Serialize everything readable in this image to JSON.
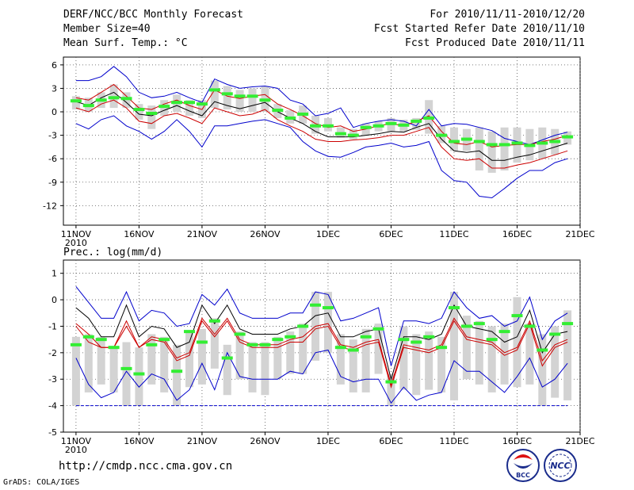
{
  "header": {
    "title": "DERF/NCC/BCC Monthly Forecast",
    "member_size": "Member Size=40",
    "variable": "Mean Surf. Temp.: °C",
    "period": "For 2010/11/11-2010/12/20",
    "started": "Fcst Started Refer Date 2010/11/10",
    "produced": "Fcst Produced Date 2010/11/11"
  },
  "footer": {
    "url": "http://cmdp.ncc.cma.gov.cn",
    "grads": "GrADS: COLA/IGES",
    "logo_bcc": "BCC",
    "logo_ncc": "NCC"
  },
  "colors": {
    "envelope": "#0000cc",
    "spread": "#cc0000",
    "mean": "#000000",
    "member_box": "#d3d3d3",
    "median_mark": "#33ee33"
  },
  "chart_data": [
    {
      "type": "line",
      "title": "Mean Surf. Temp.: °C",
      "x_tick_labels": [
        "11NOV",
        "16NOV",
        "21NOV",
        "26NOV",
        "1DEC",
        "6DEC",
        "11DEC",
        "16DEC",
        "21DEC"
      ],
      "x_year_label": "2010",
      "x_day_ticks": [
        0,
        5,
        10,
        15,
        20,
        25,
        30,
        35,
        40
      ],
      "ylim": [
        -14.5,
        7
      ],
      "yticks": [
        6,
        3,
        0,
        -3,
        -6,
        -9,
        -12
      ],
      "days": [
        0,
        1,
        2,
        3,
        4,
        5,
        6,
        7,
        8,
        9,
        10,
        11,
        12,
        13,
        14,
        15,
        16,
        17,
        18,
        19,
        20,
        21,
        22,
        23,
        24,
        25,
        26,
        27,
        28,
        29,
        30,
        31,
        32,
        33,
        34,
        35,
        36,
        37,
        38,
        39
      ],
      "series": [
        {
          "name": "max",
          "role": "envelope",
          "values": [
            4.0,
            4.0,
            4.5,
            5.8,
            4.5,
            2.5,
            1.8,
            2.0,
            2.5,
            1.8,
            1.2,
            4.2,
            3.5,
            3.0,
            3.2,
            3.3,
            3.0,
            1.5,
            1.0,
            -0.5,
            -0.2,
            0.5,
            -2.0,
            -1.5,
            -1.2,
            -1.0,
            -1.2,
            -1.8,
            0.3,
            -1.8,
            -1.5,
            -1.6,
            -2.0,
            -2.4,
            -3.4,
            -3.8,
            -4.2,
            -3.6,
            -3.0,
            -2.6
          ]
        },
        {
          "name": "upper",
          "role": "spread",
          "values": [
            1.8,
            1.5,
            2.5,
            3.5,
            2.0,
            0.5,
            0.3,
            1.0,
            1.5,
            0.8,
            0.3,
            2.8,
            2.0,
            1.7,
            2.0,
            2.2,
            1.0,
            0.3,
            -0.5,
            -1.5,
            -2.0,
            -1.8,
            -2.5,
            -2.2,
            -1.8,
            -1.5,
            -1.8,
            -1.2,
            -0.5,
            -2.5,
            -4.0,
            -4.2,
            -3.8,
            -4.5,
            -4.3,
            -4.2,
            -4.2,
            -3.8,
            -3.5,
            -3.0
          ]
        },
        {
          "name": "mean",
          "role": "mean",
          "values": [
            1.3,
            0.8,
            1.8,
            2.5,
            1.2,
            -0.3,
            -0.5,
            0.2,
            0.8,
            0.1,
            -0.5,
            1.3,
            0.8,
            0.4,
            0.8,
            1.2,
            0.0,
            -0.8,
            -1.5,
            -2.5,
            -3.2,
            -3.2,
            -3.2,
            -3.0,
            -2.8,
            -2.5,
            -2.6,
            -2.0,
            -1.5,
            -3.5,
            -5.0,
            -5.2,
            -5.0,
            -6.2,
            -6.2,
            -5.8,
            -5.5,
            -5.0,
            -4.5,
            -4.0
          ]
        },
        {
          "name": "lower",
          "role": "spread",
          "values": [
            0.5,
            0.0,
            1.0,
            1.5,
            0.5,
            -1.2,
            -1.5,
            -0.5,
            -0.2,
            -0.8,
            -1.5,
            0.5,
            0.0,
            -0.5,
            -0.3,
            0.3,
            -1.0,
            -1.8,
            -2.5,
            -3.5,
            -3.8,
            -3.8,
            -3.6,
            -3.5,
            -3.3,
            -3.0,
            -3.0,
            -2.5,
            -2.0,
            -4.5,
            -6.0,
            -6.2,
            -6.0,
            -7.2,
            -7.2,
            -6.8,
            -6.5,
            -6.0,
            -5.5,
            -5.0
          ]
        },
        {
          "name": "min",
          "role": "envelope",
          "values": [
            -1.5,
            -2.2,
            -1.0,
            -0.5,
            -1.8,
            -2.5,
            -3.5,
            -2.5,
            -1.0,
            -2.5,
            -4.5,
            -1.8,
            -1.8,
            -1.5,
            -1.2,
            -1.0,
            -1.5,
            -2.0,
            -3.8,
            -5.0,
            -5.7,
            -5.8,
            -5.2,
            -4.5,
            -4.3,
            -4.0,
            -4.5,
            -4.3,
            -3.8,
            -7.5,
            -8.8,
            -9.0,
            -10.8,
            -11.0,
            -9.8,
            -8.5,
            -7.5,
            -7.5,
            -6.5,
            -6.0
          ]
        },
        {
          "name": "median",
          "role": "median",
          "values": [
            1.4,
            0.8,
            1.5,
            1.8,
            1.7,
            0.3,
            -0.2,
            0.7,
            1.2,
            1.2,
            1.0,
            2.8,
            2.3,
            2.0,
            2.0,
            1.5,
            0.2,
            -0.8,
            -0.3,
            -1.8,
            -1.8,
            -2.8,
            -3.0,
            -2.0,
            -1.8,
            -1.5,
            -1.7,
            -1.2,
            -0.8,
            -3.0,
            -3.8,
            -3.5,
            -3.8,
            -4.2,
            -4.2,
            -4.0,
            -4.3,
            -4.0,
            -3.8,
            -3.2
          ]
        },
        {
          "name": "box_high",
          "role": "box",
          "values": [
            2.0,
            1.8,
            2.5,
            3.5,
            2.5,
            1.0,
            0.8,
            1.5,
            2.2,
            1.5,
            1.5,
            4.0,
            3.3,
            2.8,
            3.0,
            3.3,
            1.0,
            0.2,
            0.8,
            -0.5,
            -0.8,
            -2.0,
            -2.2,
            -1.5,
            -1.2,
            -0.8,
            -1.0,
            -0.8,
            1.5,
            -1.8,
            -2.0,
            -2.2,
            -2.0,
            -2.5,
            -2.0,
            -2.0,
            -2.2,
            -2.0,
            -2.2,
            -2.5
          ]
        },
        {
          "name": "box_low",
          "role": "box",
          "values": [
            0.3,
            0.0,
            0.5,
            0.5,
            0.5,
            -1.0,
            -2.2,
            -0.5,
            0.0,
            -0.5,
            -0.8,
            0.5,
            0.3,
            0.0,
            0.0,
            0.0,
            -0.8,
            -1.5,
            -1.5,
            -2.8,
            -2.5,
            -3.3,
            -3.5,
            -3.0,
            -2.5,
            -2.5,
            -2.5,
            -2.3,
            -2.8,
            -4.0,
            -5.0,
            -5.0,
            -7.5,
            -7.8,
            -7.5,
            -6.5,
            -6.2,
            -6.0,
            -5.5,
            -4.2
          ]
        }
      ]
    },
    {
      "type": "line",
      "title": "Prec.: log(mm/d)",
      "x_tick_labels": [
        "11NOV",
        "16NOV",
        "21NOV",
        "26NOV",
        "1DEC",
        "6DEC",
        "11DEC",
        "16DEC",
        "21DEC"
      ],
      "x_year_label": "2010",
      "x_day_ticks": [
        0,
        5,
        10,
        15,
        20,
        25,
        30,
        35,
        40
      ],
      "ylim": [
        -5,
        1.5
      ],
      "yticks": [
        1,
        0,
        -1,
        -2,
        -3,
        -4,
        -5
      ],
      "days": [
        0,
        1,
        2,
        3,
        4,
        5,
        6,
        7,
        8,
        9,
        10,
        11,
        12,
        13,
        14,
        15,
        16,
        17,
        18,
        19,
        20,
        21,
        22,
        23,
        24,
        25,
        26,
        27,
        28,
        29,
        30,
        31,
        32,
        33,
        34,
        35,
        36,
        37,
        38,
        39
      ],
      "series": [
        {
          "name": "max",
          "role": "envelope",
          "values": [
            0.5,
            -0.1,
            -0.7,
            -0.7,
            0.3,
            -0.8,
            -0.4,
            -0.5,
            -1.0,
            -0.9,
            0.2,
            -0.2,
            0.4,
            -0.5,
            -0.7,
            -0.7,
            -0.7,
            -0.5,
            -0.5,
            0.3,
            0.2,
            -0.8,
            -0.7,
            -0.5,
            -0.3,
            -2.5,
            -0.8,
            -0.8,
            -0.9,
            -0.7,
            0.3,
            -0.3,
            -0.7,
            -0.6,
            -1.0,
            -0.8,
            0.1,
            -1.5,
            -0.8,
            -0.5
          ]
        },
        {
          "name": "upper",
          "role": "spread",
          "values": [
            -0.9,
            -1.3,
            -1.8,
            -1.8,
            -0.8,
            -1.8,
            -1.4,
            -1.5,
            -2.2,
            -2.0,
            -0.7,
            -1.3,
            -0.7,
            -1.5,
            -1.7,
            -1.7,
            -1.7,
            -1.5,
            -1.4,
            -1.0,
            -0.9,
            -1.7,
            -1.8,
            -1.6,
            -1.5,
            -3.2,
            -1.7,
            -1.8,
            -1.9,
            -1.7,
            -0.7,
            -1.4,
            -1.5,
            -1.6,
            -2.0,
            -1.8,
            -0.8,
            -2.3,
            -1.7,
            -1.5
          ]
        },
        {
          "name": "mean",
          "role": "mean",
          "values": [
            -0.3,
            -0.7,
            -1.4,
            -1.4,
            -0.2,
            -1.4,
            -1.0,
            -1.1,
            -1.8,
            -1.6,
            -0.2,
            -0.9,
            -0.2,
            -1.1,
            -1.3,
            -1.3,
            -1.3,
            -1.1,
            -1.0,
            -0.6,
            -0.5,
            -1.4,
            -1.4,
            -1.2,
            -1.1,
            -3.0,
            -1.4,
            -1.4,
            -1.5,
            -1.3,
            -0.2,
            -1.0,
            -1.1,
            -1.2,
            -1.6,
            -1.4,
            -0.4,
            -2.0,
            -1.3,
            -1.2
          ]
        },
        {
          "name": "lower",
          "role": "spread",
          "values": [
            -1.0,
            -1.6,
            -1.8,
            -1.8,
            -1.0,
            -1.8,
            -1.5,
            -1.6,
            -2.3,
            -2.1,
            -0.8,
            -1.4,
            -0.8,
            -1.6,
            -1.8,
            -1.8,
            -1.8,
            -1.6,
            -1.6,
            -1.1,
            -1.0,
            -1.8,
            -1.9,
            -1.7,
            -1.6,
            -3.3,
            -1.8,
            -1.9,
            -2.0,
            -1.8,
            -0.8,
            -1.5,
            -1.6,
            -1.7,
            -2.1,
            -1.9,
            -0.9,
            -2.5,
            -1.8,
            -1.6
          ]
        },
        {
          "name": "min",
          "role": "envelope",
          "values": [
            -2.2,
            -3.2,
            -3.7,
            -3.5,
            -2.7,
            -3.3,
            -2.8,
            -3.0,
            -3.8,
            -3.4,
            -2.4,
            -3.4,
            -2.0,
            -2.9,
            -3.0,
            -3.0,
            -3.0,
            -2.7,
            -2.8,
            -2.0,
            -1.9,
            -2.9,
            -3.1,
            -3.0,
            -3.0,
            -3.9,
            -3.3,
            -3.8,
            -3.6,
            -3.5,
            -2.3,
            -2.7,
            -2.7,
            -3.1,
            -3.5,
            -2.9,
            -2.2,
            -3.3,
            -3.0,
            -2.4
          ]
        },
        {
          "name": "median",
          "role": "median",
          "values": [
            -1.7,
            -1.4,
            -1.5,
            -1.8,
            -2.6,
            -2.8,
            -1.7,
            -1.5,
            -2.7,
            -1.2,
            -1.6,
            -0.8,
            -2.2,
            -1.3,
            -1.7,
            -1.7,
            -1.5,
            -1.4,
            -1.0,
            -0.2,
            -0.3,
            -1.8,
            -1.9,
            -1.4,
            -1.1,
            -3.1,
            -1.5,
            -1.6,
            -1.4,
            -1.8,
            -0.3,
            -1.0,
            -0.9,
            -1.5,
            -1.2,
            -0.6,
            -1.0,
            -1.9,
            -1.3,
            -0.9
          ]
        },
        {
          "name": "box_high",
          "role": "box",
          "values": [
            -1.4,
            -1.3,
            -1.4,
            -1.8,
            -1.6,
            -1.8,
            -1.3,
            -1.4,
            -1.7,
            -1.2,
            -1.1,
            -0.7,
            -1.7,
            -1.2,
            -1.6,
            -1.6,
            -1.4,
            -1.2,
            -0.9,
            0.3,
            0.3,
            -1.3,
            -1.5,
            -1.1,
            -0.9,
            -2.8,
            -1.0,
            -1.3,
            -1.2,
            -1.4,
            0.3,
            -0.6,
            -0.8,
            -1.0,
            -0.9,
            0.1,
            -0.9,
            -1.3,
            -1.0,
            -0.4
          ]
        },
        {
          "name": "box_low",
          "role": "box",
          "values": [
            -4.0,
            -3.5,
            -3.2,
            -3.5,
            -4.0,
            -4.0,
            -3.2,
            -3.5,
            -4.0,
            -3.3,
            -3.2,
            -2.6,
            -3.6,
            -3.0,
            -3.5,
            -3.6,
            -3.0,
            -2.8,
            -2.8,
            -2.3,
            -2.0,
            -3.2,
            -3.5,
            -3.5,
            -2.8,
            -4.0,
            -3.4,
            -3.6,
            -3.4,
            -3.5,
            -3.8,
            -3.0,
            -3.2,
            -3.5,
            -3.2,
            -3.3,
            -3.2,
            -4.0,
            -3.7,
            -3.8
          ]
        },
        {
          "name": "threshold",
          "role": "reference",
          "value": -4
        }
      ]
    }
  ]
}
